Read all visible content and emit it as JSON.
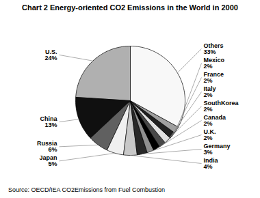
{
  "chart_data": {
    "type": "pie",
    "title": "Chart 2 Energy-oriented CO2 Emissions in the World in 2000",
    "source": "Source: OECD/IEA CO2Emissions from Fuel Combustion",
    "categories": [
      "U.S.",
      "China",
      "Russia",
      "Japan",
      "India",
      "Germany",
      "U.K.",
      "Canada",
      "SouthKorea",
      "Italy",
      "France",
      "Mexico",
      "Others"
    ],
    "values": [
      24,
      13,
      6,
      5,
      4,
      3,
      2,
      2,
      2,
      2,
      2,
      2,
      33
    ],
    "value_labels": [
      "24%",
      "13%",
      "6%",
      "5%",
      "4%",
      "3%",
      "2%",
      "2%",
      "2%",
      "2%",
      "2%",
      "2%",
      "33%"
    ],
    "colors": [
      "#b0b0b0",
      "#101010",
      "#606060",
      "#f0f0f0",
      "#c8c8c8",
      "#282828",
      "#909090",
      "#000000",
      "#484848",
      "#e0e0e0",
      "#202020",
      "#a0a0a0",
      "#f8f8f8"
    ],
    "data_labels": true
  }
}
